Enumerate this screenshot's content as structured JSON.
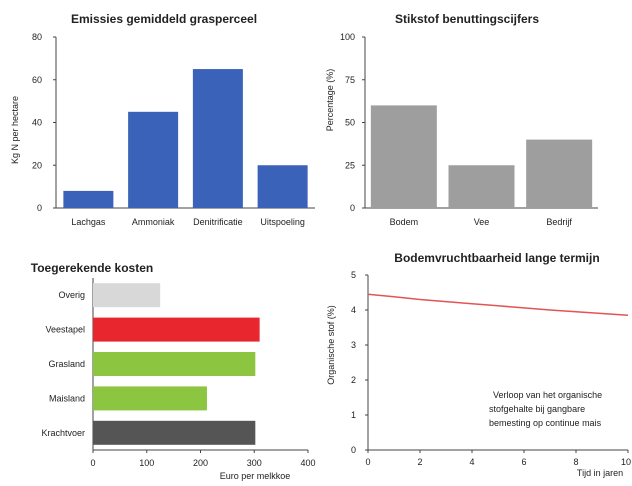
{
  "chart_data": [
    {
      "type": "bar",
      "title": "Emissies gemiddeld grasperceel",
      "xlabel": "",
      "ylabel": "Kg N per hectare",
      "ylim": [
        0,
        80
      ],
      "yticks": [
        "0",
        "20",
        "40",
        "60",
        "80"
      ],
      "categories": [
        "Lachgas",
        "Ammoniak",
        "Denitrificatie",
        "Uitspoeling"
      ],
      "values": [
        8,
        45,
        65,
        20
      ],
      "color": "#3a62b8",
      "grid": false
    },
    {
      "type": "bar",
      "title": "Stikstof benuttingscijfers",
      "xlabel": "",
      "ylabel": "Percentage (%)",
      "ylim": [
        0,
        100
      ],
      "yticks": [
        "0",
        "25",
        "50",
        "75",
        "100"
      ],
      "categories": [
        "Bodem",
        "Vee",
        "Bedrijf"
      ],
      "values": [
        60,
        25,
        40
      ],
      "color": "#9e9e9e",
      "grid": false
    },
    {
      "type": "bar",
      "orientation": "horizontal",
      "title": "Toegerekende kosten",
      "xlabel": "Euro per melkkoe",
      "ylabel": "",
      "xlim": [
        0,
        400
      ],
      "xticks": [
        "0",
        "100",
        "200",
        "300",
        "400"
      ],
      "categories": [
        "Overig",
        "Veestapel",
        "Grasland",
        "Maisland",
        "Krachtvoer"
      ],
      "values": [
        125,
        310,
        302,
        212,
        302
      ],
      "colors": [
        "#d8d8d8",
        "#e8262d",
        "#8cc540",
        "#8cc540",
        "#555555"
      ],
      "grid": false
    },
    {
      "type": "line",
      "title": "Bodemvruchtbaarheid lange termijn",
      "xlabel": "Tijd in jaren",
      "ylabel": "Organische stof (%)",
      "xlim": [
        0,
        10
      ],
      "ylim": [
        0,
        5
      ],
      "xticks": [
        "0",
        "2",
        "4",
        "6",
        "8",
        "10"
      ],
      "yticks": [
        "0",
        "1",
        "2",
        "3",
        "4",
        "5"
      ],
      "x": [
        0,
        1,
        2,
        3,
        4,
        5,
        6,
        7,
        8,
        9,
        10
      ],
      "series": [
        {
          "values": [
            4.45,
            4.38,
            4.3,
            4.24,
            4.18,
            4.12,
            4.06,
            4.0,
            3.95,
            3.9,
            3.85
          ],
          "color": "#e05555"
        }
      ],
      "annotation": [
        "Verloop van het organische",
        "stofgehalte bij gangbare",
        "bemesting op continue mais"
      ],
      "grid": false
    }
  ]
}
